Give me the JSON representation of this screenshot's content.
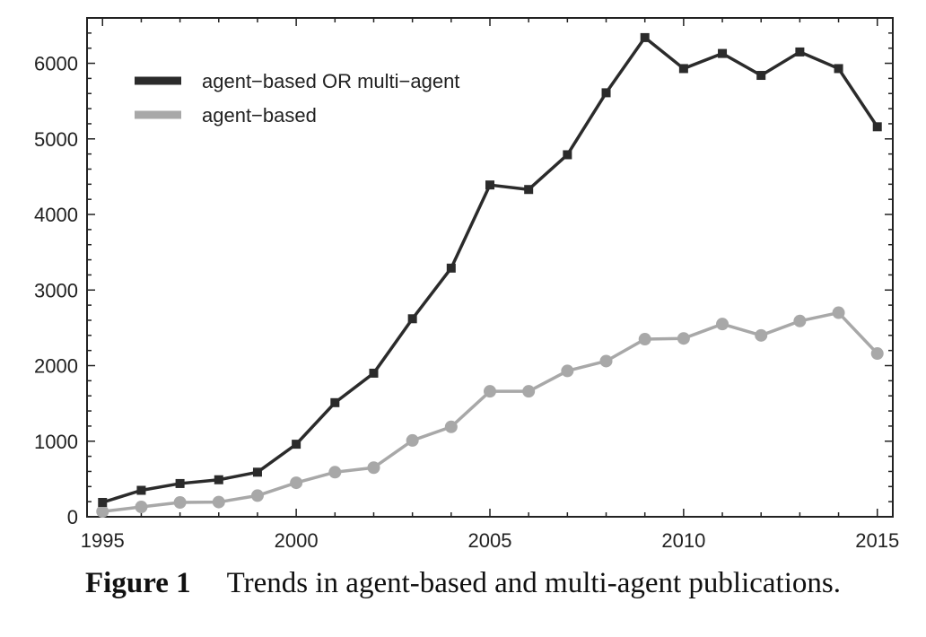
{
  "caption": {
    "label": "Figure 1",
    "text": "Trends in agent-based and multi-agent publications."
  },
  "chart_data": {
    "type": "line",
    "title": "",
    "xlabel": "",
    "ylabel": "",
    "x": [
      1995,
      1996,
      1997,
      1998,
      1999,
      2000,
      2001,
      2002,
      2003,
      2004,
      2005,
      2006,
      2007,
      2008,
      2009,
      2010,
      2011,
      2012,
      2013,
      2014,
      2015
    ],
    "xlim": [
      1994.6,
      2015.4
    ],
    "ylim": [
      0,
      6600
    ],
    "xticks": [
      1995,
      2000,
      2005,
      2010,
      2015
    ],
    "yticks": [
      0,
      1000,
      2000,
      3000,
      4000,
      5000,
      6000
    ],
    "xtick_labels": [
      "1995",
      "2000",
      "2005",
      "2010",
      "2015"
    ],
    "ytick_labels": [
      "0",
      "1000",
      "2000",
      "3000",
      "4000",
      "5000",
      "6000"
    ],
    "grid": false,
    "legend_position": "top-left",
    "series": [
      {
        "name": "agent−based OR multi−agent",
        "color": "#2b2b2b",
        "marker": "square",
        "values": [
          190,
          350,
          440,
          490,
          590,
          960,
          1510,
          1900,
          2620,
          3290,
          4390,
          4330,
          4790,
          5610,
          6340,
          5930,
          6130,
          5840,
          6150,
          5930,
          5160
        ]
      },
      {
        "name": "agent−based",
        "color": "#a8a8a8",
        "marker": "circle",
        "values": [
          70,
          130,
          190,
          195,
          280,
          450,
          590,
          650,
          1010,
          1190,
          1660,
          1660,
          1930,
          2060,
          2350,
          2360,
          2550,
          2400,
          2590,
          2700,
          2160
        ]
      }
    ]
  }
}
